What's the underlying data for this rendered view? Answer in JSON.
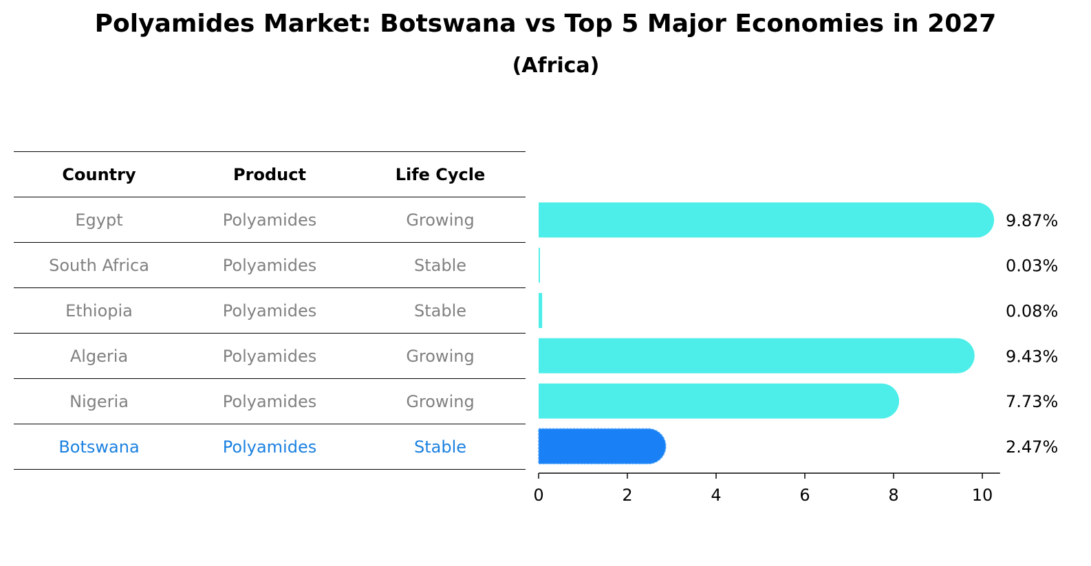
{
  "title": "Polyamides Market: Botswana vs Top 5 Major Economies in 2027",
  "subtitle": "(Africa)",
  "table": {
    "headers": [
      "Country",
      "Product",
      "Life Cycle"
    ],
    "rows": [
      [
        "Egypt",
        "Polyamides",
        "Growing"
      ],
      [
        "South Africa",
        "Polyamides",
        "Stable"
      ],
      [
        "Ethiopia",
        "Polyamides",
        "Stable"
      ],
      [
        "Algeria",
        "Polyamides",
        "Growing"
      ],
      [
        "Nigeria",
        "Polyamides",
        "Growing"
      ],
      [
        "Botswana",
        "Polyamides",
        "Stable"
      ]
    ]
  },
  "colors": {
    "bar": "#4deee9",
    "highlight": "#1a80f5",
    "highlight_text": "#1a80e0",
    "muted_text": "#808080"
  },
  "chart_data": {
    "type": "bar",
    "orientation": "horizontal",
    "categories": [
      "Egypt",
      "South Africa",
      "Ethiopia",
      "Algeria",
      "Nigeria",
      "Botswana"
    ],
    "values": [
      9.87,
      0.03,
      0.08,
      9.43,
      7.73,
      2.47
    ],
    "value_labels": [
      "9.87%",
      "0.03%",
      "0.08%",
      "9.43%",
      "7.73%",
      "2.47%"
    ],
    "highlight": "Botswana",
    "xlim": [
      0,
      10.4
    ],
    "xticks": [
      0,
      2,
      4,
      6,
      8,
      10
    ],
    "xlabel": "",
    "ylabel": "",
    "grid": false
  }
}
